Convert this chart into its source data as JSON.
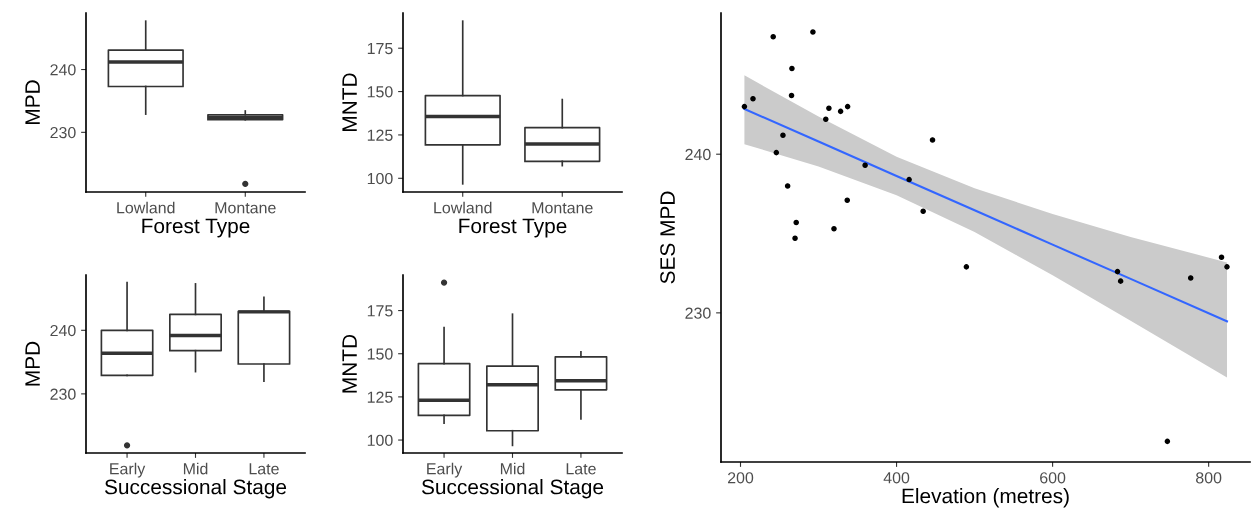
{
  "chart_data": [
    {
      "type": "box",
      "xlabel": "Forest Type",
      "ylabel": "MPD",
      "categories": [
        "Lowland",
        "Montane"
      ],
      "color": "#333333",
      "boxes": [
        {
          "low": 232.9,
          "q1": 237.3,
          "median": 241.2,
          "q3": 243.1,
          "high": 247.7
        },
        {
          "low": 232.0,
          "q1": 232.0,
          "median": 232.4,
          "q3": 232.8,
          "high": 233.4,
          "outliers": [
            221.8
          ]
        }
      ],
      "ylim": [
        220.5,
        249.0
      ],
      "yticks": [
        230,
        240
      ],
      "grid": false
    },
    {
      "type": "box",
      "xlabel": "Forest Type",
      "ylabel": "MNTD",
      "categories": [
        "Lowland",
        "Montane"
      ],
      "color": "#333333",
      "boxes": [
        {
          "low": 96.8,
          "q1": 119.3,
          "median": 135.6,
          "q3": 147.7,
          "high": 190.6
        },
        {
          "low": 107.3,
          "q1": 109.8,
          "median": 119.8,
          "q3": 129.2,
          "high": 145.4
        }
      ],
      "ylim": [
        92.1,
        195.3
      ],
      "yticks": [
        100,
        125,
        150,
        175
      ],
      "grid": false
    },
    {
      "type": "box",
      "xlabel": "Successional Stage",
      "ylabel": "MPD",
      "categories": [
        "Early",
        "Mid",
        "Late"
      ],
      "color": "#333333",
      "boxes": [
        {
          "low": 232.9,
          "q1": 232.9,
          "median": 236.4,
          "q3": 240.0,
          "high": 247.5,
          "outliers": [
            221.9
          ]
        },
        {
          "low": 233.5,
          "q1": 236.8,
          "median": 239.2,
          "q3": 242.5,
          "high": 247.3
        },
        {
          "low": 232.0,
          "q1": 234.7,
          "median": 242.9,
          "q3": 243.0,
          "high": 245.2
        }
      ],
      "ylim": [
        220.7,
        248.7
      ],
      "yticks": [
        230,
        240
      ],
      "grid": false
    },
    {
      "type": "box",
      "xlabel": "Successional Stage",
      "ylabel": "MNTD",
      "categories": [
        "Early",
        "Mid",
        "Late"
      ],
      "color": "#333333",
      "boxes": [
        {
          "low": 109.8,
          "q1": 114.3,
          "median": 123.0,
          "q3": 144.3,
          "high": 165.2,
          "outliers": [
            191.2
          ]
        },
        {
          "low": 96.9,
          "q1": 105.4,
          "median": 132.0,
          "q3": 142.8,
          "high": 172.9
        },
        {
          "low": 112.2,
          "q1": 129.1,
          "median": 134.3,
          "q3": 148.2,
          "high": 151.1
        }
      ],
      "ylim": [
        92.5,
        195.6
      ],
      "yticks": [
        100,
        125,
        150,
        175
      ],
      "grid": false
    },
    {
      "type": "scatter",
      "xlabel": "Elevation (metres)",
      "ylabel": "SES MPD",
      "xlim": [
        175,
        853
      ],
      "xticks": [
        200,
        400,
        600,
        800
      ],
      "ylim": [
        220.6,
        248.9
      ],
      "yticks": [
        230,
        240
      ],
      "grid": false,
      "series": [
        {
          "type": "scatter",
          "marker": "circle",
          "color": "#000000",
          "x": [
            205.0,
            216.0,
            241.9,
            292.8,
            265.9,
            265.4,
            313.3,
            328.3,
            337.3,
            309.3,
            254.4,
            245.9,
            359.7,
            446.1,
            416.1,
            260.4,
            336.8,
            434.1,
            271.4,
            269.9,
            319.8,
            489.5,
            683.2,
            687.2,
            777.0,
            816.5,
            823.5,
            747.1
          ],
          "values": [
            243.0,
            243.5,
            247.4,
            247.7,
            245.4,
            243.7,
            242.9,
            242.7,
            243.0,
            242.2,
            241.2,
            240.1,
            239.3,
            240.9,
            238.4,
            238.0,
            237.1,
            236.4,
            235.7,
            234.7,
            235.3,
            232.9,
            232.6,
            232.0,
            232.2,
            233.5,
            232.9,
            221.9
          ]
        },
        {
          "type": "line",
          "color": "#3366ff",
          "x": [
            205,
            300,
            400,
            500,
            600,
            700,
            823.5
          ],
          "values": [
            242.85,
            240.8,
            238.63,
            236.47,
            234.3,
            232.14,
            229.47
          ],
          "lower": [
            240.63,
            239.23,
            237.42,
            235.09,
            232.37,
            229.5,
            225.93
          ],
          "upper": [
            244.97,
            242.37,
            239.84,
            237.85,
            236.23,
            234.78,
            233.18
          ]
        }
      ]
    }
  ]
}
